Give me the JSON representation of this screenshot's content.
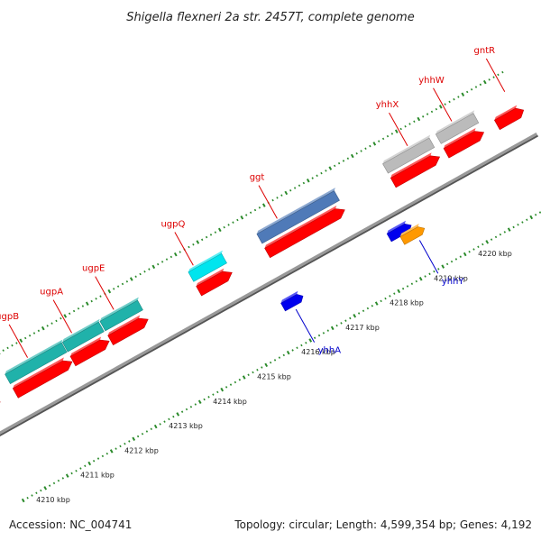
{
  "title": "Shigella flexneri 2a str. 2457T, complete genome",
  "footer": {
    "accession": "Accession: NC_004741",
    "summary": "Topology: circular; Length: 4,599,354 bp; Genes: 4,192"
  },
  "colors": {
    "label_top": "#dd0000",
    "label_bottom": "#0000cc",
    "line_top": "#dd0000",
    "line_bottom": "#0000cc",
    "track": "#999999",
    "ticks": "#2a8a2a"
  },
  "scale": {
    "unit": "kbp",
    "start": 4209.5,
    "end": 4221.9
  },
  "tick_labels": [
    {
      "value": 4210,
      "text": "4210 kbp"
    },
    {
      "value": 4211,
      "text": "4211 kbp"
    },
    {
      "value": 4212,
      "text": "4212 kbp"
    },
    {
      "value": 4213,
      "text": "4213 kbp"
    },
    {
      "value": 4214,
      "text": "4214 kbp"
    },
    {
      "value": 4215,
      "text": "4215 kbp"
    },
    {
      "value": 4216,
      "text": "4216 kbp"
    },
    {
      "value": 4217,
      "text": "4217 kbp"
    },
    {
      "value": 4218,
      "text": "4218 kbp"
    },
    {
      "value": 4219,
      "text": "4219 kbp"
    },
    {
      "value": 4220,
      "text": "4220 kbp"
    }
  ],
  "genes_top": [
    {
      "name": "",
      "start": 4209.5,
      "end": 4210.05,
      "color": "#4682b4"
    },
    {
      "name": "ugpB",
      "start": 4210.4,
      "end": 4211.68,
      "color": "#20b2aa"
    },
    {
      "name": "ugpA",
      "start": 4211.7,
      "end": 4212.52,
      "color": "#20b2aa"
    },
    {
      "name": "ugpE",
      "start": 4212.55,
      "end": 4213.4,
      "color": "#20b2aa"
    },
    {
      "name": "ugpQ",
      "start": 4214.55,
      "end": 4215.3,
      "color": "#00e5ee"
    },
    {
      "name": "ggt",
      "start": 4216.1,
      "end": 4217.85,
      "color": "#4f7ab8"
    },
    {
      "name": "yhhX",
      "start": 4218.95,
      "end": 4220.0,
      "color": "#bbbbbb"
    },
    {
      "name": "yhhW",
      "start": 4220.15,
      "end": 4221.0,
      "color": "#bbbbbb"
    },
    {
      "name": "gntR",
      "start": 4221.3,
      "end": 4221.9,
      "color": "#ff0000"
    }
  ],
  "genes_bottom": [
    {
      "name": "yhhA",
      "start": 4215.85,
      "end": 4216.3,
      "color": "#0000ee"
    },
    {
      "name": "",
      "start": 4218.35,
      "end": 4218.85,
      "color": "#0000ee"
    },
    {
      "name": "yhhY",
      "start": 4218.55,
      "end": 4219.05,
      "color": "#ff9900"
    }
  ],
  "gene_labels_top": [
    {
      "name": "ugpB",
      "anchor": 4210.95
    },
    {
      "name": "ugpA",
      "anchor": 4211.95
    },
    {
      "name": "ugpE",
      "anchor": 4212.9
    },
    {
      "name": "ugpQ",
      "anchor": 4214.7
    },
    {
      "name": "ggt",
      "anchor": 4216.6
    },
    {
      "name": "yhhX",
      "anchor": 4219.55
    },
    {
      "name": "yhhW",
      "anchor": 4220.55
    },
    {
      "name": "gntR",
      "anchor": 4221.75
    }
  ],
  "gene_labels_bottom": [
    {
      "name": "yhhA",
      "anchor": 4216.05
    },
    {
      "name": "yhhY",
      "anchor": 4218.85
    }
  ]
}
